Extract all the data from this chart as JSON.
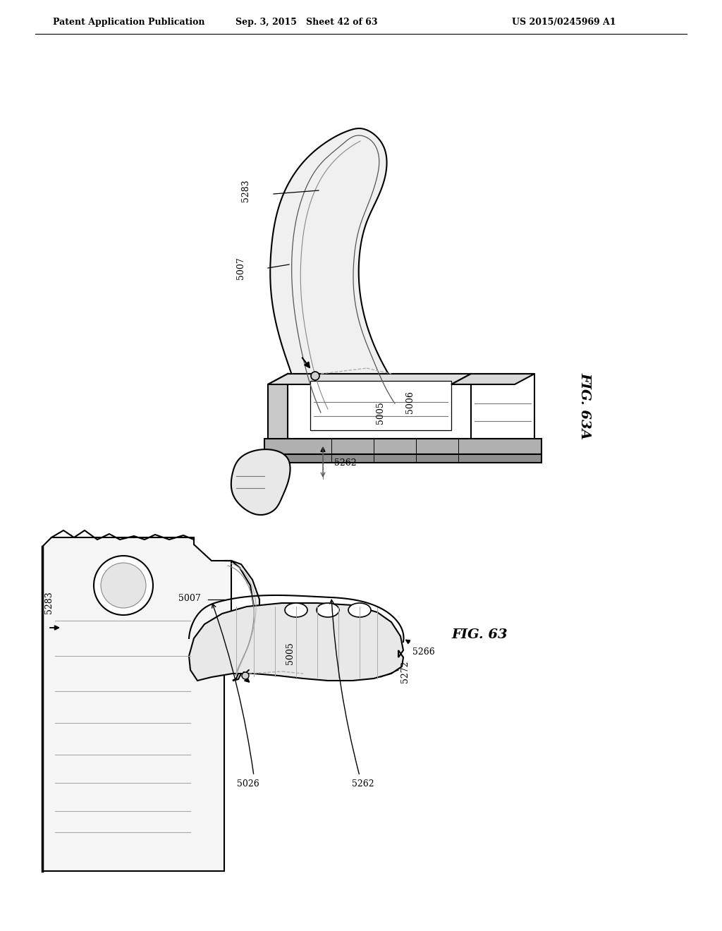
{
  "bg_color": "#ffffff",
  "line_color": "#000000",
  "header_left": "Patent Application Publication",
  "header_mid": "Sep. 3, 2015   Sheet 42 of 63",
  "header_right": "US 2015/0245969 A1",
  "fig_label_top": "FIG. 63A",
  "fig_label_bot": "FIG. 63"
}
